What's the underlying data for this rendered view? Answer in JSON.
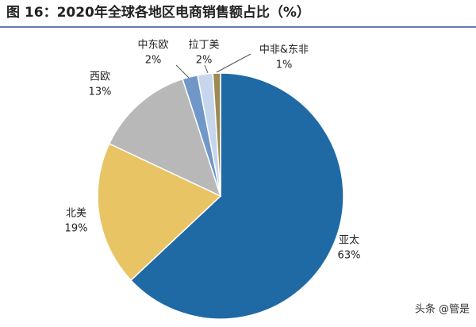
{
  "chart_data": {
    "type": "pie",
    "title": "图 16：2020年全球各地区电商销售额占比（%）",
    "categories": [
      "亚太",
      "北美",
      "西欧",
      "中东欧",
      "拉丁美",
      "中非&东非"
    ],
    "values": [
      63,
      19,
      13,
      2,
      2,
      1
    ],
    "value_labels": [
      "63%",
      "19%",
      "13%",
      "2%",
      "2%",
      "1%"
    ],
    "colors": [
      "#1f6aa5",
      "#e9c464",
      "#b8b8b8",
      "#7197c9",
      "#c6d6ec",
      "#9c8b52"
    ],
    "watermark": "头条 @管是"
  }
}
